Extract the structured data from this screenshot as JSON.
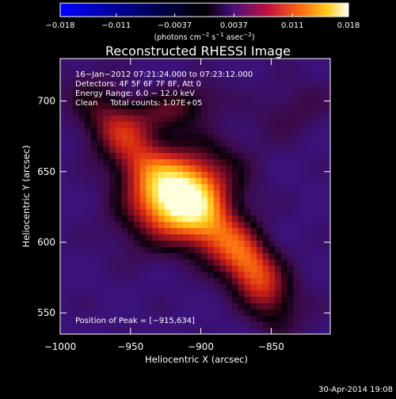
{
  "chart_data": {
    "type": "heatmap",
    "title": "Reconstructed RHESSI Image",
    "xlabel": "Heliocentric X (arcsec)",
    "ylabel": "Heliocentric Y (arcsec)",
    "xlim": [
      -1000,
      -808
    ],
    "ylim": [
      535,
      730
    ],
    "x_ticks": [
      {
        "value": -1000,
        "label": "−1000"
      },
      {
        "value": -950,
        "label": "−950"
      },
      {
        "value": -900,
        "label": "−900"
      },
      {
        "value": -850,
        "label": "−850"
      }
    ],
    "y_ticks": [
      {
        "value": 700,
        "label": "700"
      },
      {
        "value": 650,
        "label": "650"
      },
      {
        "value": 600,
        "label": "600"
      },
      {
        "value": 550,
        "label": "550"
      }
    ],
    "colorbar": {
      "range": [
        -0.018,
        0.018
      ],
      "tick_labels": [
        "−0.018",
        "−0.011",
        "−0.0037",
        "0.0037",
        "0.011",
        "0.018"
      ],
      "tick_values": [
        -0.018,
        -0.011,
        -0.0037,
        0.0037,
        0.011,
        0.018
      ],
      "units_parts": [
        "(photons cm",
        "−2",
        " s",
        "−1",
        " asec",
        "−2",
        ")"
      ]
    },
    "annotations": [
      "16−Jan−2012 07:21:24.000 to 07:23:12.000",
      "Detectors: 4F 5F 6F 7F 8F, Att 0",
      "Energy Range: 6.0 − 12.0 keV",
      "Clean     Total counts: 1.07E+05"
    ],
    "peak_label": "Position of Peak = [−915,634]",
    "peak": [
      -915,
      634
    ],
    "colors": {
      "negative_end": "#0000ff",
      "zero": "#000000",
      "positive_mid": "#e0201c",
      "positive_end": "#ffffff",
      "background_wash": "#4a1690"
    }
  },
  "footer": {
    "date": "30-Apr-2014 19:08"
  }
}
